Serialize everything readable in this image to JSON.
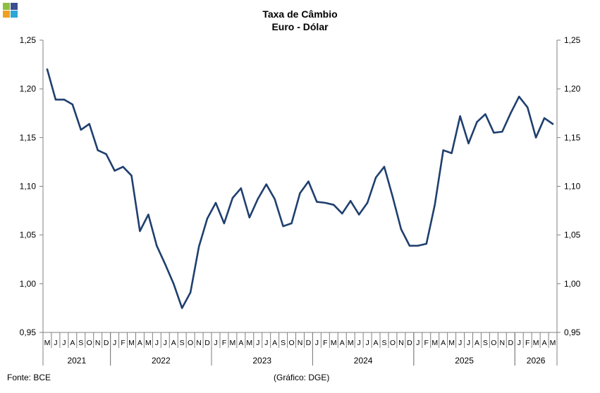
{
  "chart_data": {
    "type": "line",
    "title": "Taxa de Câmbio",
    "subtitle": "Euro - Dólar",
    "ylim": [
      0.95,
      1.25
    ],
    "yticks": [
      "0,95",
      "1,00",
      "1,05",
      "1,10",
      "1,15",
      "1,20",
      "1,25"
    ],
    "ytick_values": [
      0.95,
      1.0,
      1.05,
      1.1,
      1.15,
      1.2,
      1.25
    ],
    "grid": false,
    "legend": "none",
    "months": [
      "M",
      "J",
      "J",
      "A",
      "S",
      "O",
      "N",
      "D",
      "J",
      "F",
      "M",
      "A",
      "M",
      "J",
      "J",
      "A",
      "S",
      "O",
      "N",
      "D",
      "J",
      "F",
      "M",
      "A",
      "M",
      "J",
      "J",
      "A",
      "S",
      "O",
      "N",
      "D",
      "J",
      "F",
      "M",
      "A",
      "M",
      "J",
      "J",
      "A",
      "S",
      "O",
      "N",
      "D",
      "J",
      "F",
      "M",
      "A",
      "M",
      "J",
      "J",
      "A",
      "S",
      "O",
      "N",
      "D",
      "J",
      "F",
      "M",
      "A",
      "M"
    ],
    "years": [
      {
        "label": "2021",
        "start": 0,
        "count": 8
      },
      {
        "label": "2022",
        "start": 8,
        "count": 12
      },
      {
        "label": "2023",
        "start": 20,
        "count": 12
      },
      {
        "label": "2024",
        "start": 32,
        "count": 12
      },
      {
        "label": "2025",
        "start": 44,
        "count": 12
      },
      {
        "label": "2026",
        "start": 56,
        "count": 5
      }
    ],
    "series": [
      {
        "color": "#1f3f6e",
        "values": [
          1.22,
          1.189,
          1.189,
          1.184,
          1.158,
          1.164,
          1.137,
          1.133,
          1.116,
          1.12,
          1.111,
          1.054,
          1.071,
          1.039,
          1.02,
          1.0,
          0.975,
          0.991,
          1.038,
          1.067,
          1.083,
          1.062,
          1.088,
          1.098,
          1.068,
          1.087,
          1.102,
          1.087,
          1.059,
          1.062,
          1.093,
          1.105,
          1.084,
          1.083,
          1.081,
          1.072,
          1.085,
          1.071,
          1.083,
          1.109,
          1.12,
          1.089,
          1.056,
          1.039,
          1.039,
          1.041,
          1.081,
          1.137,
          1.134,
          1.172,
          1.144,
          1.166,
          1.174,
          1.155,
          1.156,
          1.175,
          1.192,
          1.181,
          1.15,
          1.17,
          1.164
        ]
      }
    ]
  },
  "footer": {
    "source": "Fonte: BCE",
    "credit": "(Gráfico: DGE)"
  },
  "logo": {
    "icon": "four-squares-logo",
    "colors": [
      "#8fbf3f",
      "#3a4f8f",
      "#f0a020",
      "#2aa7d6"
    ]
  }
}
